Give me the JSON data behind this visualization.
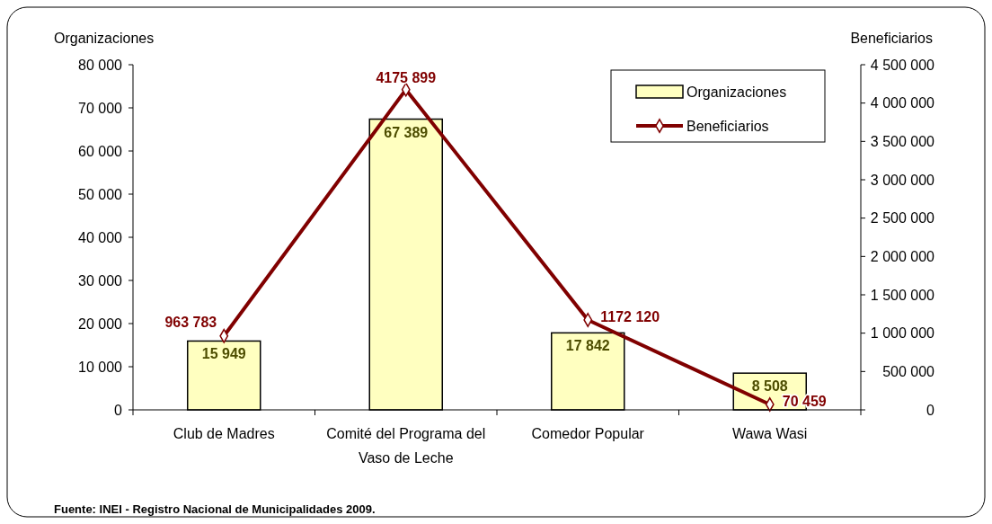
{
  "chart_data": {
    "type": "bar",
    "ylabel": "Organizaciones",
    "y2label": "Beneficiarios",
    "categories": [
      "Club de Madres",
      "Comité del Programa del Vaso de Leche",
      "Comedor Popular",
      "Wawa Wasi"
    ],
    "series": [
      {
        "name": "Organizaciones",
        "color": "#ffffc0",
        "values": [
          15949,
          67389,
          17842,
          8508
        ],
        "value_labels": [
          "15 949",
          "67 389",
          "17 842",
          "8 508"
        ]
      },
      {
        "name": "Beneficiarios",
        "type": "line",
        "axis": "y2",
        "color": "#800000",
        "marker": "diamond",
        "values": [
          963783,
          4175899,
          1172120,
          70459
        ],
        "value_labels": [
          "963 783",
          "4175 899",
          "1172 120",
          "70 459"
        ]
      }
    ],
    "ylim": [
      0,
      80000
    ],
    "yticks": [
      {
        "value": 0,
        "label": "0"
      },
      {
        "value": 10000,
        "label": "10 000"
      },
      {
        "value": 20000,
        "label": "20 000"
      },
      {
        "value": 30000,
        "label": "30 000"
      },
      {
        "value": 40000,
        "label": "40 000"
      },
      {
        "value": 50000,
        "label": "50 000"
      },
      {
        "value": 60000,
        "label": "60 000"
      },
      {
        "value": 70000,
        "label": "70 000"
      },
      {
        "value": 80000,
        "label": "80 000"
      }
    ],
    "y2lim": [
      0,
      4500000
    ],
    "y2ticks": [
      {
        "value": 0,
        "label": "0"
      },
      {
        "value": 500000,
        "label": "500 000"
      },
      {
        "value": 1000000,
        "label": "1 000 000"
      },
      {
        "value": 1500000,
        "label": "1 500 000"
      },
      {
        "value": 2000000,
        "label": "2 000 000"
      },
      {
        "value": 2500000,
        "label": "2 500 000"
      },
      {
        "value": 3000000,
        "label": "3 000 000"
      },
      {
        "value": 3500000,
        "label": "3 500 000"
      },
      {
        "value": 4000000,
        "label": "4 000 000"
      },
      {
        "value": 4500000,
        "label": "4 500 000"
      }
    ],
    "legend": "top right",
    "grid": false,
    "annotations": [
      "Fuente: INEI - Registro Nacional de Municipalidades 2009."
    ]
  }
}
